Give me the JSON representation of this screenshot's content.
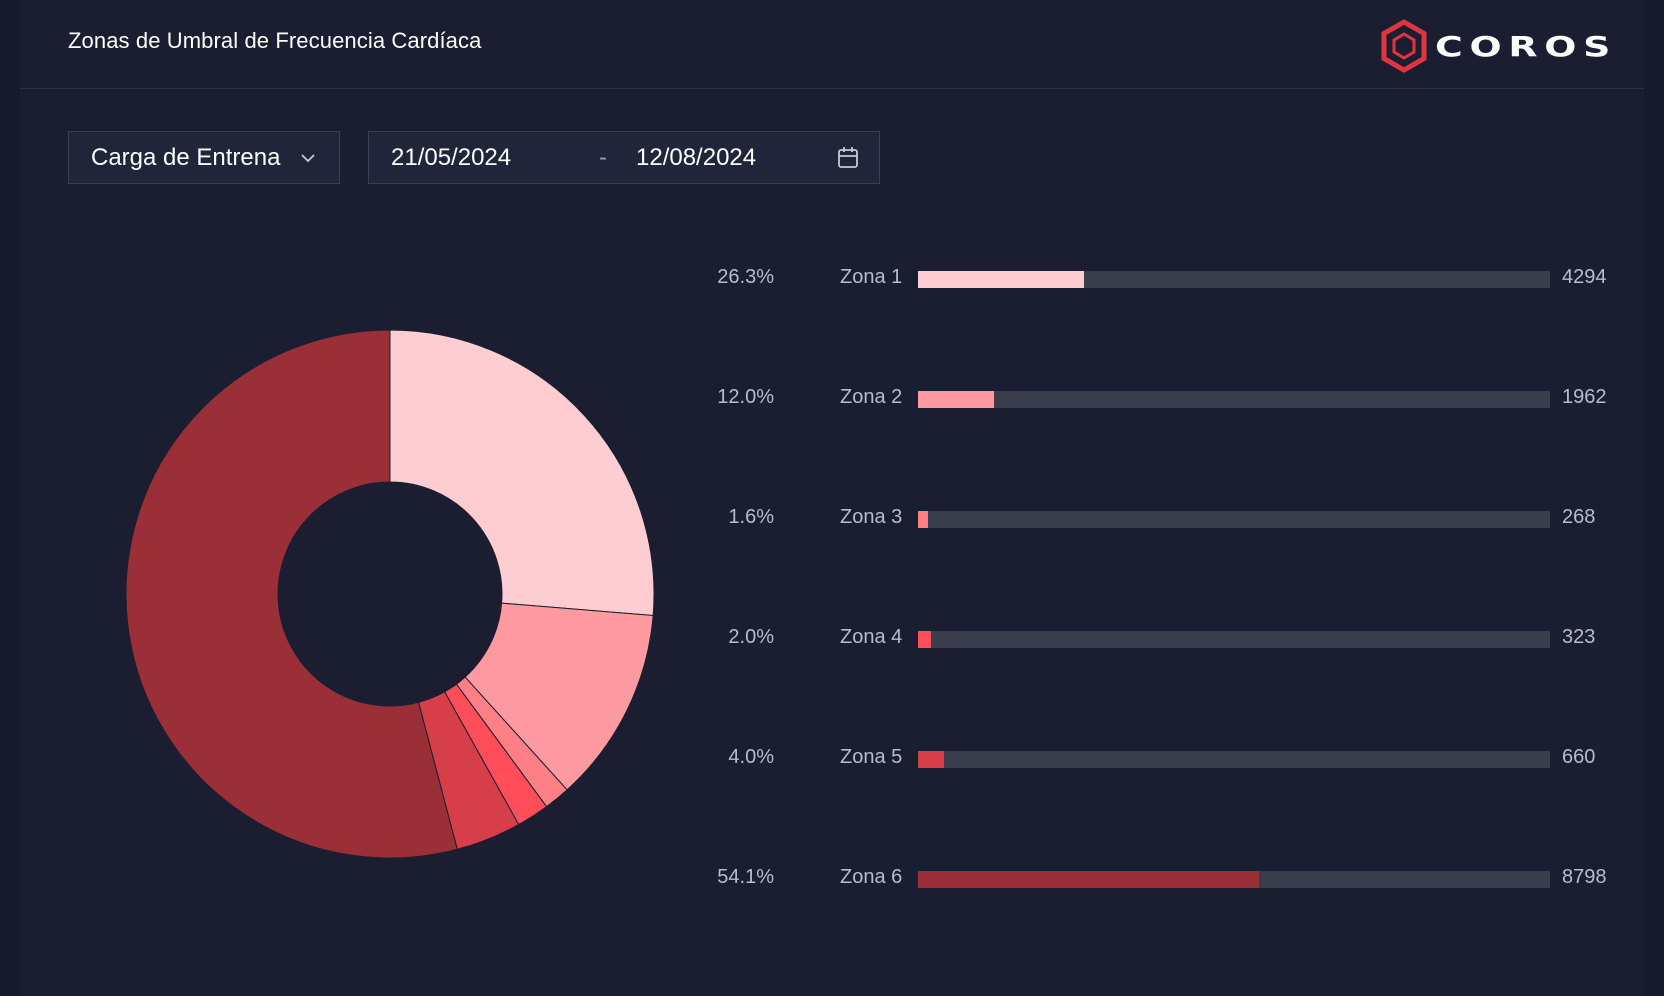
{
  "header": {
    "title": "Zonas de Umbral de Frecuencia Cardíaca",
    "logo_text": "COROS"
  },
  "filters": {
    "metric_value": "Carga de Entrena",
    "date_start": "21/05/2024",
    "date_separator": "-",
    "date_end": "12/08/2024"
  },
  "icons": {
    "metric_dropdown": "chevron-down-icon",
    "date_picker": "calendar-icon",
    "logo": "coros-hexagon-logo-icon"
  },
  "colors": {
    "brand_red": "#e0343f",
    "track": "#3a3d4c"
  },
  "chart_data": {
    "type": "pie",
    "style": "donut",
    "categories": [
      "Zona 1",
      "Zona 2",
      "Zona 3",
      "Zona 4",
      "Zona 5",
      "Zona 6"
    ],
    "percent_labels": [
      "26.3%",
      "12.0%",
      "1.6%",
      "2.0%",
      "4.0%",
      "54.1%"
    ],
    "percentages": [
      26.3,
      12.0,
      1.6,
      2.0,
      4.0,
      54.1
    ],
    "values": [
      4294,
      1962,
      268,
      323,
      660,
      8798
    ],
    "value_labels": [
      "4294",
      "1962",
      "268",
      "323",
      "660",
      "8798"
    ],
    "colors": [
      "#fecdd2",
      "#ff9aa1",
      "#ff7f87",
      "#ff4d5a",
      "#d63f49",
      "#9b2f37"
    ]
  }
}
